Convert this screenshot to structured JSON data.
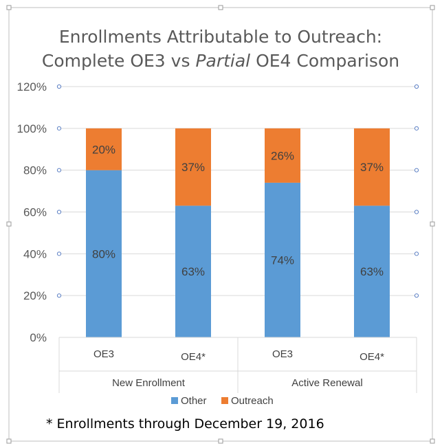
{
  "chart_data": {
    "type": "bar",
    "stacked": true,
    "title": [
      "Enrollments Attributable to Outreach:",
      "Complete OE3 vs Partial OE4 Comparison"
    ],
    "title_parts": {
      "line2_before": "Complete OE3 vs ",
      "line2_italic": "Partial",
      "line2_after": " OE4 Comparison"
    },
    "categories": [
      "OE3",
      "OE4*",
      "OE3",
      "OE4*"
    ],
    "groups": [
      {
        "label": "New Enrollment",
        "span": 2
      },
      {
        "label": "Active Renewal",
        "span": 2
      }
    ],
    "series": [
      {
        "name": "Other",
        "color": "#5B9BD5",
        "values": [
          80,
          63,
          74,
          63
        ],
        "labels": [
          "80%",
          "63%",
          "74%",
          "63%"
        ]
      },
      {
        "name": "Outreach",
        "color": "#ED7D31",
        "values": [
          20,
          37,
          26,
          37
        ],
        "labels": [
          "20%",
          "37%",
          "26%",
          "37%"
        ]
      }
    ],
    "ylim": [
      0,
      120
    ],
    "yticks": [
      "0%",
      "20%",
      "40%",
      "60%",
      "80%",
      "100%",
      "120%"
    ],
    "grid": true,
    "legend_position": "bottom",
    "footnote": "* Enrollments through December 19, 2016"
  }
}
